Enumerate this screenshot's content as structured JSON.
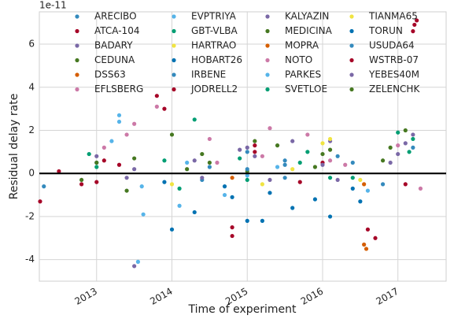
{
  "chart_data": {
    "type": "scatter",
    "x_label": "Time of experiment",
    "y_label": "Residual delay rate",
    "y_offset_label": "1e-11",
    "xlim": [
      2012.24,
      2017.64
    ],
    "xticks": [
      2013,
      2014,
      2015,
      2016,
      2017
    ],
    "ylim": [
      -5,
      7.5
    ],
    "yticks": [
      -4,
      -2,
      0,
      2,
      4,
      6
    ],
    "grid": true,
    "hline": 0,
    "legend": "upper left",
    "series": [
      {
        "name": "ARECIBO",
        "color": "#348ABD",
        "x": [
          2012.3,
          2013.0,
          2014.4,
          2015.0,
          2015.5,
          2016.2,
          2016.8,
          2017.2
        ],
        "values": [
          -0.6,
          0.5,
          -0.3,
          1.0,
          0.4,
          0.8,
          -0.5,
          1.2
        ]
      },
      {
        "name": "ATCA-104",
        "color": "#A60628",
        "x": [
          2012.25,
          2012.5,
          2012.8,
          2013.0,
          2014.8,
          2016.6,
          2016.7
        ],
        "values": [
          -1.3,
          0.1,
          -0.5,
          -0.4,
          -2.5,
          -2.6,
          -3.0
        ]
      },
      {
        "name": "BADARY",
        "color": "#7A68A6",
        "x": [
          2013.0,
          2013.5,
          2014.3,
          2015.0,
          2015.3,
          2016.1,
          2016.9,
          2017.2
        ],
        "values": [
          0.8,
          -4.3,
          0.6,
          1.2,
          -0.3,
          1.5,
          0.5,
          1.8
        ]
      },
      {
        "name": "CEDUNA",
        "color": "#467821",
        "x": [
          2012.8,
          2013.4,
          2014.0,
          2014.2,
          2015.1,
          2016.0,
          2017.1
        ],
        "values": [
          -0.3,
          -0.8,
          1.8,
          0.2,
          1.5,
          0.9,
          2.0
        ]
      },
      {
        "name": "DSS63",
        "color": "#D55E00",
        "x": [
          2016.55,
          2016.58
        ],
        "values": [
          -3.3,
          -3.5
        ]
      },
      {
        "name": "EFLSBERG",
        "color": "#CC79A7",
        "x": [
          2013.1,
          2013.5,
          2013.8,
          2014.5,
          2015.2,
          2015.8,
          2016.3,
          2017.3
        ],
        "values": [
          1.2,
          2.3,
          3.1,
          1.6,
          0.8,
          1.8,
          0.4,
          -0.7
        ]
      },
      {
        "name": "EVPTRIYA",
        "color": "#56B4E9",
        "x": [
          2013.2,
          2013.3,
          2013.6,
          2013.62,
          2014.1,
          2014.7,
          2015.4,
          2016.6
        ],
        "values": [
          1.5,
          2.7,
          -0.6,
          -1.9,
          -1.5,
          -1.0,
          0.3,
          -0.8
        ]
      },
      {
        "name": "GBT-VLBA",
        "color": "#009E73",
        "x": [
          2013.0,
          2013.9,
          2014.3,
          2015.0,
          2015.7,
          2016.1,
          2017.0,
          2017.15
        ],
        "values": [
          0.3,
          0.6,
          2.5,
          -0.3,
          0.5,
          -0.2,
          1.9,
          1.0
        ]
      },
      {
        "name": "HARTRAO",
        "color": "#F0E442",
        "x": [
          2014.0,
          2015.6,
          2016.0,
          2016.5
        ],
        "values": [
          -0.5,
          0.2,
          1.4,
          -0.3
        ]
      },
      {
        "name": "HOBART26",
        "color": "#0072B2",
        "x": [
          2014.0,
          2014.3,
          2014.7,
          2015.0,
          2015.3,
          2015.6,
          2016.1,
          2016.5
        ],
        "values": [
          -2.6,
          -1.8,
          -0.6,
          -2.2,
          -0.9,
          -1.6,
          -2.0,
          -1.3
        ]
      },
      {
        "name": "IRBENE",
        "color": "#348ABD",
        "x": [
          2014.5,
          2015.5,
          2016.4
        ],
        "values": [
          0.3,
          -0.2,
          0.5
        ]
      },
      {
        "name": "JODRELL2",
        "color": "#A60628",
        "x": [
          2013.3,
          2013.8,
          2014.8,
          2015.1,
          2016.0,
          2017.1
        ],
        "values": [
          0.4,
          3.6,
          -2.9,
          1.3,
          0.5,
          -0.5
        ]
      },
      {
        "name": "KALYAZIN",
        "color": "#7A68A6",
        "x": [
          2013.5,
          2014.4,
          2015.1,
          2015.6,
          2016.2,
          2017.0
        ],
        "values": [
          0.2,
          -0.2,
          0.8,
          1.5,
          -0.3,
          0.9
        ]
      },
      {
        "name": "MEDICINA",
        "color": "#467821",
        "x": [
          2013.0,
          2014.4,
          2015.0,
          2015.9,
          2016.9
        ],
        "values": [
          0.5,
          0.9,
          0.1,
          0.3,
          1.2
        ]
      },
      {
        "name": "MOPRA",
        "color": "#D55E00",
        "x": [
          2014.8,
          2016.55
        ],
        "values": [
          -0.2,
          -0.5
        ]
      },
      {
        "name": "NOTO",
        "color": "#CC79A7",
        "x": [
          2013.4,
          2014.6,
          2015.3,
          2016.1,
          2017.0
        ],
        "values": [
          1.8,
          0.5,
          2.1,
          0.6,
          1.3
        ]
      },
      {
        "name": "PARKES",
        "color": "#56B4E9",
        "x": [
          2013.3,
          2013.55,
          2014.2,
          2015.0
        ],
        "values": [
          2.4,
          -4.1,
          0.5,
          -0.1
        ]
      },
      {
        "name": "SVETLOE",
        "color": "#009E73",
        "x": [
          2012.9,
          2014.1,
          2014.9,
          2015.8,
          2016.4,
          2017.2
        ],
        "values": [
          0.9,
          -0.7,
          0.7,
          1.0,
          -0.2,
          1.6
        ]
      },
      {
        "name": "TIANMA65",
        "color": "#F0E442",
        "x": [
          2015.2,
          2016.1
        ],
        "values": [
          -0.5,
          1.6
        ]
      },
      {
        "name": "TORUN",
        "color": "#0072B2",
        "x": [
          2013.9,
          2014.8,
          2015.2,
          2015.9,
          2016.4
        ],
        "values": [
          -0.4,
          -1.1,
          -2.2,
          -1.2,
          -0.7
        ]
      },
      {
        "name": "USUDA64",
        "color": "#348ABD",
        "x": [
          2015.0,
          2015.5
        ],
        "values": [
          0.2,
          0.6
        ]
      },
      {
        "name": "WSTRB-07",
        "color": "#A60628",
        "x": [
          2013.1,
          2013.9,
          2015.1,
          2015.7,
          2017.2,
          2017.25,
          2017.22
        ],
        "values": [
          0.6,
          3.0,
          1.0,
          -0.4,
          6.6,
          7.1,
          6.9
        ]
      },
      {
        "name": "YEBES40M",
        "color": "#7A68A6",
        "x": [
          2013.4,
          2014.9,
          2016.0,
          2017.1
        ],
        "values": [
          -0.2,
          1.1,
          0.4,
          1.4
        ]
      },
      {
        "name": "ZELENCHK",
        "color": "#467821",
        "x": [
          2013.5,
          2014.5,
          2015.4,
          2016.1,
          2016.8
        ],
        "values": [
          0.7,
          0.5,
          1.3,
          1.1,
          0.6
        ]
      }
    ]
  }
}
